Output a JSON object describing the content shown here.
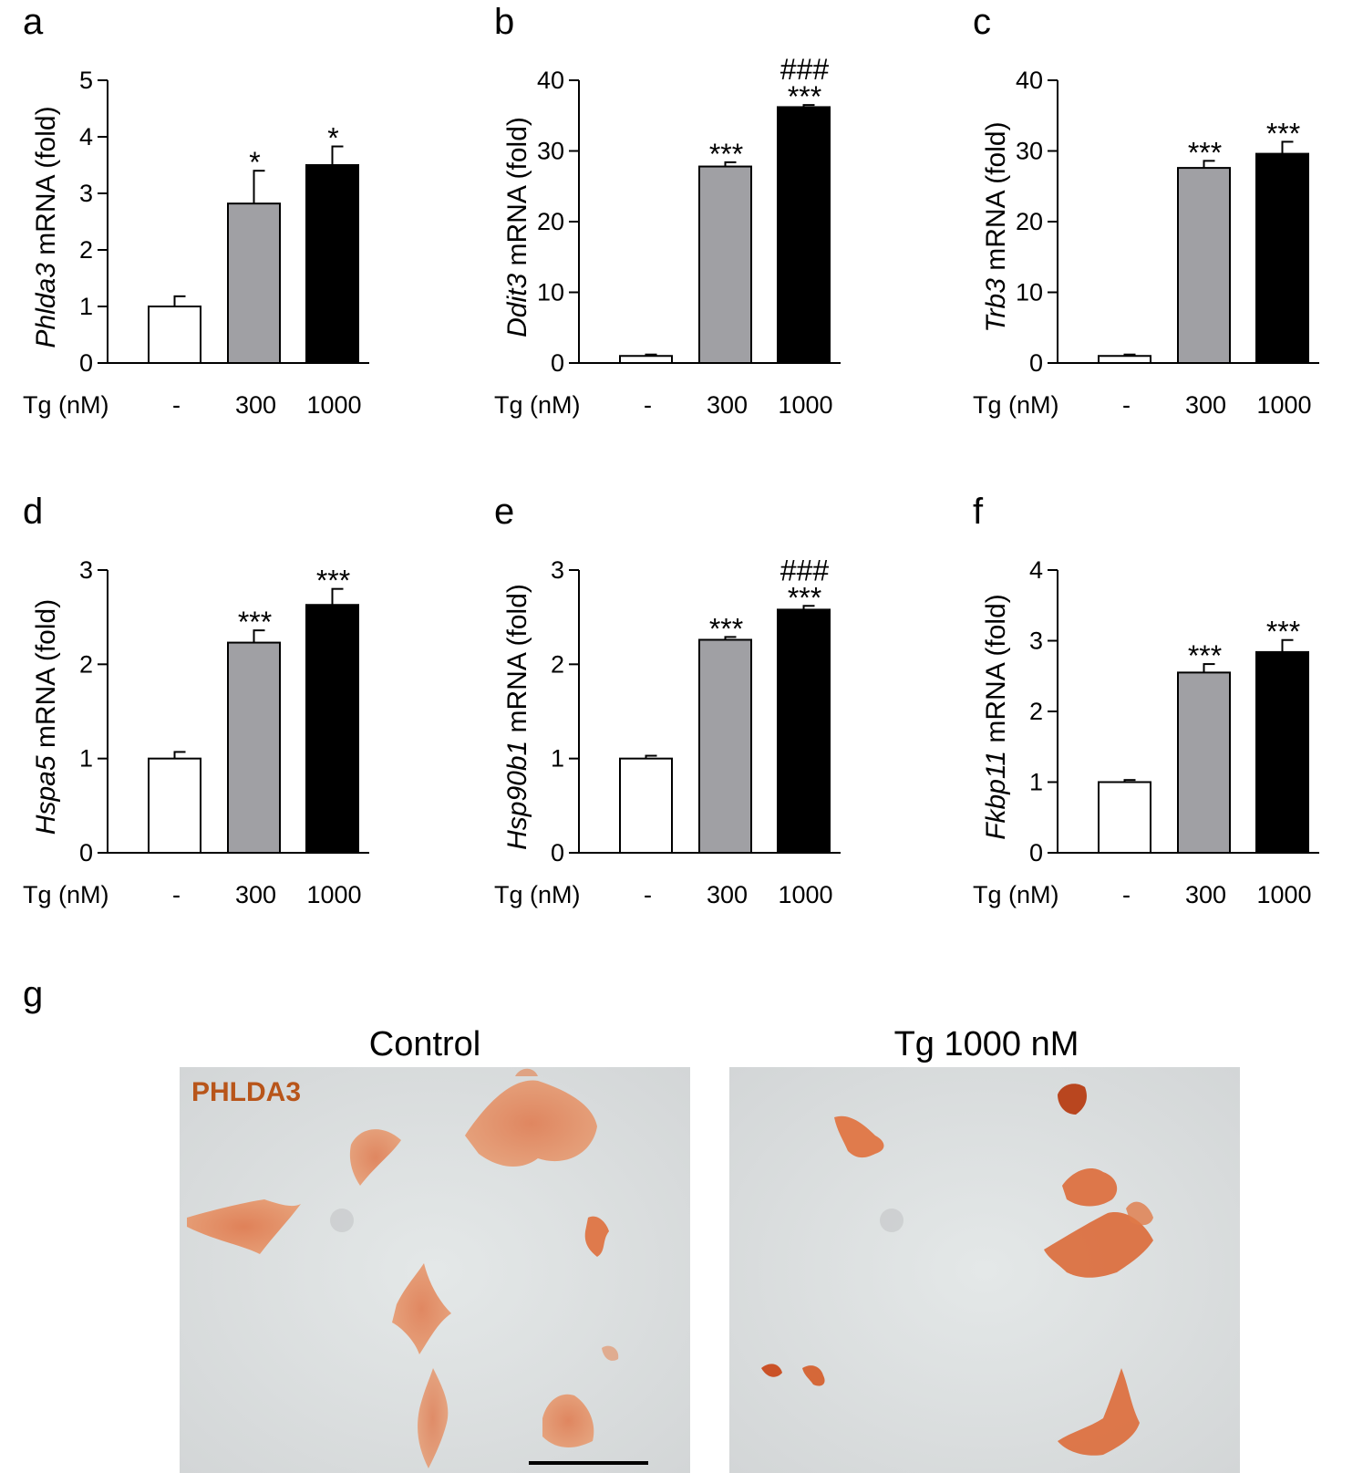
{
  "chart_data": [
    {
      "panel": "a",
      "type": "bar",
      "gene": "Phlda3",
      "ylabel_suffix": " mRNA (fold)",
      "xlabel": "Tg (nM)",
      "categories": [
        "-",
        "300",
        "1000"
      ],
      "values": [
        1.0,
        2.82,
        3.5
      ],
      "errors": [
        0.18,
        0.58,
        0.33
      ],
      "ylim": [
        0,
        5
      ],
      "yticks": [
        0,
        1,
        2,
        3,
        4,
        5
      ],
      "annotations": [
        [
          "",
          ""
        ],
        [
          "",
          "*"
        ],
        [
          "",
          "*"
        ]
      ]
    },
    {
      "panel": "b",
      "type": "bar",
      "gene": "Ddit3",
      "ylabel_suffix": " mRNA (fold)",
      "xlabel": "Tg (nM)",
      "categories": [
        "-",
        "300",
        "1000"
      ],
      "values": [
        1.0,
        27.8,
        36.2
      ],
      "errors": [
        0.2,
        0.6,
        0.3
      ],
      "ylim": [
        0,
        40
      ],
      "yticks": [
        0,
        10,
        20,
        30,
        40
      ],
      "annotations": [
        [
          "",
          ""
        ],
        [
          "",
          "***"
        ],
        [
          "###",
          "***"
        ]
      ]
    },
    {
      "panel": "c",
      "type": "bar",
      "gene": "Trb3",
      "ylabel_suffix": " mRNA (fold)",
      "xlabel": "Tg (nM)",
      "categories": [
        "-",
        "300",
        "1000"
      ],
      "values": [
        1.0,
        27.6,
        29.6
      ],
      "errors": [
        0.2,
        1.0,
        1.7
      ],
      "ylim": [
        0,
        40
      ],
      "yticks": [
        0,
        10,
        20,
        30,
        40
      ],
      "annotations": [
        [
          "",
          ""
        ],
        [
          "",
          "***"
        ],
        [
          "",
          "***"
        ]
      ]
    },
    {
      "panel": "d",
      "type": "bar",
      "gene": "Hspa5",
      "ylabel_suffix": " mRNA (fold)",
      "xlabel": "Tg (nM)",
      "categories": [
        "-",
        "300",
        "1000"
      ],
      "values": [
        1.0,
        2.23,
        2.63
      ],
      "errors": [
        0.07,
        0.13,
        0.17
      ],
      "ylim": [
        0,
        3
      ],
      "yticks": [
        0,
        1,
        2,
        3
      ],
      "annotations": [
        [
          "",
          ""
        ],
        [
          "",
          "***"
        ],
        [
          "",
          "***"
        ]
      ]
    },
    {
      "panel": "e",
      "type": "bar",
      "gene": "Hsp90b1",
      "ylabel_suffix": " mRNA (fold)",
      "xlabel": "Tg (nM)",
      "categories": [
        "-",
        "300",
        "1000"
      ],
      "values": [
        1.0,
        2.26,
        2.58
      ],
      "errors": [
        0.03,
        0.03,
        0.04
      ],
      "ylim": [
        0,
        3
      ],
      "yticks": [
        0,
        1,
        2,
        3
      ],
      "annotations": [
        [
          "",
          ""
        ],
        [
          "",
          "***"
        ],
        [
          "###",
          "***"
        ]
      ]
    },
    {
      "panel": "f",
      "type": "bar",
      "gene": "Fkbp11",
      "ylabel_suffix": " mRNA (fold)",
      "xlabel": "Tg (nM)",
      "categories": [
        "-",
        "300",
        "1000"
      ],
      "values": [
        1.0,
        2.55,
        2.84
      ],
      "errors": [
        0.03,
        0.12,
        0.17
      ],
      "ylim": [
        0,
        4
      ],
      "yticks": [
        0,
        1,
        2,
        3,
        4
      ],
      "annotations": [
        [
          "",
          ""
        ],
        [
          "",
          "***"
        ],
        [
          "",
          "***"
        ]
      ]
    }
  ],
  "colors": {
    "bar_fills": [
      "#ffffff",
      "#a0a0a4",
      "#000000"
    ],
    "stain": "#d9652b",
    "background_micro": "#dde1e2"
  },
  "micrographs": {
    "panel": "g",
    "left_title": "Control",
    "right_title": "Tg 1000 nM",
    "stain_label": "PHLDA3"
  }
}
